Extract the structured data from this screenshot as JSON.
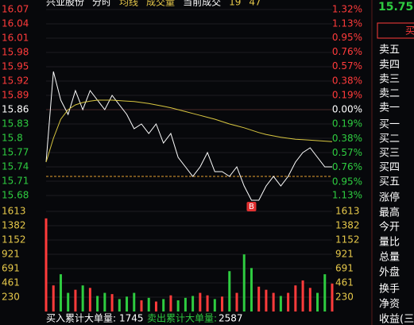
{
  "chart_data": [
    {
      "type": "line",
      "prev_close": 15.86,
      "legend": [
        {
          "text": "兴业股份",
          "color": "#ffffff"
        },
        {
          "text": "分时",
          "color": "#ffffff"
        },
        {
          "text": "均线",
          "color": "#e6c84a"
        },
        {
          "text": "成交量",
          "color": "#e6c84a"
        },
        {
          "text": "当前成交",
          "color": "#ffffff"
        },
        {
          "text": "19",
          "color": "#e6c84a"
        },
        {
          "text": "47",
          "color": "#e6c84a"
        }
      ],
      "series": [
        {
          "name": "分时",
          "color": "#ffffff",
          "values": [
            15.75,
            15.94,
            15.88,
            15.85,
            15.9,
            15.86,
            15.9,
            15.88,
            15.86,
            15.89,
            15.87,
            15.85,
            15.82,
            15.83,
            15.81,
            15.83,
            15.79,
            15.81,
            15.76,
            15.74,
            15.72,
            15.74,
            15.77,
            15.73,
            15.73,
            15.72,
            15.74,
            15.7,
            15.67,
            15.67,
            15.7,
            15.72,
            15.7,
            15.72,
            15.75,
            15.77,
            15.78,
            15.76,
            15.74,
            15.74
          ]
        },
        {
          "name": "均线",
          "color": "#d8c640",
          "values": [
            15.75,
            15.8,
            15.84,
            15.86,
            15.87,
            15.875,
            15.878,
            15.88,
            15.88,
            15.88,
            15.879,
            15.878,
            15.877,
            15.875,
            15.873,
            15.87,
            15.867,
            15.864,
            15.86,
            15.856,
            15.852,
            15.848,
            15.844,
            15.84,
            15.835,
            15.83,
            15.826,
            15.822,
            15.817,
            15.812,
            15.808,
            15.805,
            15.802,
            15.8,
            15.798,
            15.797,
            15.796,
            15.795,
            15.794,
            15.793
          ]
        }
      ],
      "reference_line": 15.72,
      "marker": {
        "label": "B",
        "index": 28
      },
      "ylim": [
        15.68,
        16.07
      ],
      "yticks": [
        16.07,
        16.04,
        16.01,
        15.98,
        15.95,
        15.92,
        15.89,
        15.86,
        15.83,
        15.8,
        15.77,
        15.74,
        15.71,
        15.68
      ],
      "y2lim": [
        -1.13,
        1.32
      ],
      "y2ticks": [
        {
          "value": 1.32,
          "label": "1.32%"
        },
        {
          "value": 1.13,
          "label": "1.13%"
        },
        {
          "value": 0.95,
          "label": "0.95%"
        },
        {
          "value": 0.76,
          "label": "0.76%"
        },
        {
          "value": 0.57,
          "label": "0.57%"
        },
        {
          "value": 0.38,
          "label": "0.38%"
        },
        {
          "value": 0.19,
          "label": "0.19%"
        },
        {
          "value": 0,
          "label": "0.00%"
        },
        {
          "value": -0.19,
          "label": "0.19%"
        },
        {
          "value": -0.38,
          "label": "0.38%"
        },
        {
          "value": -0.57,
          "label": "0.57%"
        },
        {
          "value": -0.76,
          "label": "0.76%"
        },
        {
          "value": -0.95,
          "label": "0.95%"
        },
        {
          "value": -1.13,
          "label": "1.13%"
        }
      ]
    },
    {
      "type": "bar",
      "color": "#e6c84a",
      "values": [
        1500,
        420,
        600,
        300,
        350,
        420,
        380,
        250,
        300,
        280,
        200,
        240,
        300,
        180,
        220,
        160,
        200,
        260,
        180,
        220,
        250,
        300,
        260,
        200,
        240,
        650,
        300,
        920,
        700,
        400,
        350,
        300,
        250,
        300,
        420,
        500,
        380,
        300,
        600,
        450
      ],
      "ylim": [
        0,
        1613
      ],
      "yticks": [
        1613,
        1382,
        1152,
        921,
        691,
        461,
        230
      ]
    }
  ],
  "quote_panel": {
    "price": "15.75",
    "button": "买",
    "labels": [
      "卖五",
      "卖四",
      "卖三",
      "卖二",
      "卖一",
      "买一",
      "买二",
      "买三",
      "买四",
      "买五",
      "涨停",
      "最高",
      "今开",
      "量比",
      "总量",
      "外盘",
      "换手",
      "净资",
      "收益(三)"
    ]
  },
  "footer": {
    "buy_label": "买入累计大单量:",
    "buy_value": 1745,
    "sell_label": "卖出累计大单量:",
    "sell_value": 2587
  }
}
